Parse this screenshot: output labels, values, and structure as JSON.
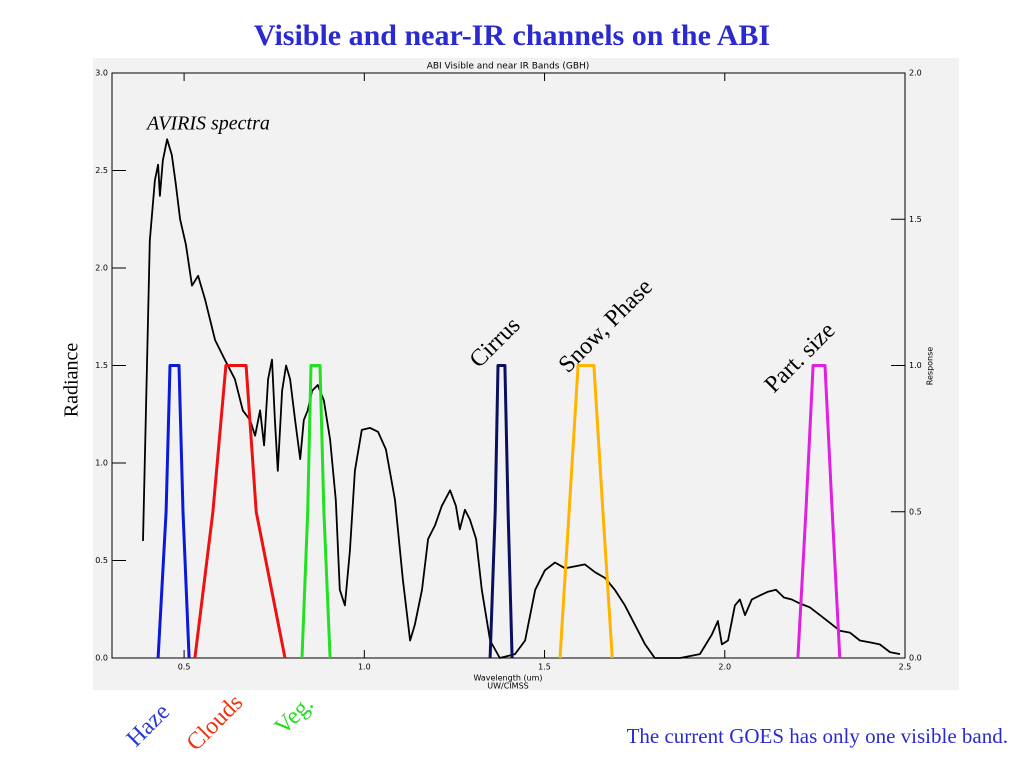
{
  "chart_data": {
    "type": "line",
    "title": "Visible and near-IR channels on the ABI",
    "subtitle": "ABI Visible and near IR Bands (GBH)",
    "x_label": "Wavelength (um)",
    "x_label_sub": "UW/CIMSS",
    "y_label": "Radiance",
    "y2_label": "Response",
    "footnote": "The current GOES has only one visible band.",
    "xlim": [
      0.3,
      2.5
    ],
    "xticks": [
      0.5,
      {
        "value": 1.0,
        "label": "1.0"
      },
      1.5,
      {
        "value": 2.0,
        "label": "2.0"
      },
      2.5
    ],
    "ylim": [
      0,
      3
    ],
    "yticks": [
      {
        "value": 0,
        "label": "0.0"
      },
      0.5,
      {
        "value": 1,
        "label": "1.0"
      },
      1.5,
      {
        "value": 2,
        "label": "2.0"
      },
      2.5,
      {
        "value": 3,
        "label": "3.0"
      }
    ],
    "y2lim": [
      0,
      2
    ],
    "y2ticks": [
      {
        "value": 0,
        "label": "0.0"
      },
      0.5,
      {
        "value": 1,
        "label": "1.0"
      },
      1.5,
      {
        "value": 2,
        "label": "2.0"
      }
    ],
    "series": [
      {
        "name": "AVIRIS spectra",
        "color": "#000000",
        "x": [
          0.386,
          0.405,
          0.419,
          0.428,
          0.433,
          0.441,
          0.453,
          0.466,
          0.477,
          0.489,
          0.505,
          0.522,
          0.539,
          0.558,
          0.586,
          0.613,
          0.641,
          0.663,
          0.683,
          0.697,
          0.711,
          0.722,
          0.733,
          0.744,
          0.752,
          0.76,
          0.772,
          0.783,
          0.794,
          0.808,
          0.822,
          0.832,
          0.843,
          0.855,
          0.871,
          0.888,
          0.905,
          0.921,
          0.932,
          0.946,
          0.96,
          0.974,
          0.993,
          1.016,
          1.038,
          1.06,
          1.085,
          1.107,
          1.127,
          1.14,
          1.16,
          1.177,
          1.196,
          1.215,
          1.238,
          1.254,
          1.265,
          1.279,
          1.293,
          1.31,
          1.326,
          1.349,
          1.376,
          1.418,
          1.446,
          1.474,
          1.501,
          1.529,
          1.557,
          1.584,
          1.612,
          1.64,
          1.668,
          1.695,
          1.723,
          1.751,
          1.779,
          1.806,
          1.876,
          1.931,
          1.964,
          1.981,
          1.992,
          2.009,
          2.028,
          2.042,
          2.056,
          2.075,
          2.097,
          2.12,
          2.142,
          2.164,
          2.186,
          2.208,
          2.236,
          2.264,
          2.292,
          2.319,
          2.347,
          2.375,
          2.403,
          2.43,
          2.458,
          2.486
        ],
        "values": [
          0.6,
          2.14,
          2.45,
          2.53,
          2.37,
          2.55,
          2.66,
          2.58,
          2.43,
          2.25,
          2.12,
          1.91,
          1.96,
          1.84,
          1.63,
          1.53,
          1.43,
          1.27,
          1.22,
          1.14,
          1.27,
          1.09,
          1.43,
          1.53,
          1.22,
          0.96,
          1.37,
          1.5,
          1.43,
          1.22,
          1.02,
          1.22,
          1.27,
          1.37,
          1.4,
          1.32,
          1.12,
          0.81,
          0.35,
          0.27,
          0.55,
          0.96,
          1.17,
          1.18,
          1.16,
          1.07,
          0.81,
          0.4,
          0.09,
          0.17,
          0.35,
          0.61,
          0.68,
          0.78,
          0.86,
          0.78,
          0.66,
          0.76,
          0.71,
          0.61,
          0.35,
          0.09,
          0.0,
          0.02,
          0.09,
          0.35,
          0.45,
          0.49,
          0.46,
          0.47,
          0.48,
          0.44,
          0.41,
          0.35,
          0.27,
          0.17,
          0.07,
          0.0,
          0.0,
          0.02,
          0.12,
          0.19,
          0.07,
          0.09,
          0.27,
          0.3,
          0.22,
          0.3,
          0.32,
          0.34,
          0.35,
          0.31,
          0.3,
          0.28,
          0.26,
          0.22,
          0.18,
          0.14,
          0.13,
          0.09,
          0.08,
          0.07,
          0.03,
          0.02
        ]
      },
      {
        "name": "Haze",
        "color": "#0a1ad8",
        "axis": "y2",
        "x": [
          0.428,
          0.45,
          0.461,
          0.486,
          0.497,
          0.514
        ],
        "values": [
          0,
          0.5,
          1,
          1,
          0.5,
          0
        ]
      },
      {
        "name": "Clouds",
        "color": "#ee1111",
        "axis": "y2",
        "x": [
          0.53,
          0.58,
          0.616,
          0.672,
          0.7,
          0.78
        ],
        "values": [
          0,
          0.5,
          1,
          1,
          0.5,
          0
        ]
      },
      {
        "name": "Veg.",
        "color": "#22e022",
        "axis": "y2",
        "x": [
          0.827,
          0.843,
          0.852,
          0.877,
          0.888,
          0.905
        ],
        "values": [
          0,
          0.5,
          1,
          1,
          0.5,
          0
        ]
      },
      {
        "name": "Cirrus",
        "color": "#0a1060",
        "axis": "y2",
        "x": [
          1.349,
          1.363,
          1.371,
          1.39,
          1.399,
          1.41
        ],
        "values": [
          0,
          0.5,
          1,
          1,
          0.5,
          0
        ]
      },
      {
        "name": "Snow, Phase",
        "color": "#ffb400",
        "axis": "y2",
        "x": [
          1.543,
          1.568,
          1.593,
          1.637,
          1.662,
          1.688
        ],
        "values": [
          0,
          0.5,
          1,
          1,
          0.5,
          0
        ]
      },
      {
        "name": "Part. size",
        "color": "#e020e0",
        "axis": "y2",
        "x": [
          2.203,
          2.225,
          2.245,
          2.278,
          2.298,
          2.319
        ],
        "values": [
          0,
          0.5,
          1,
          1,
          0.5,
          0
        ]
      }
    ]
  }
}
